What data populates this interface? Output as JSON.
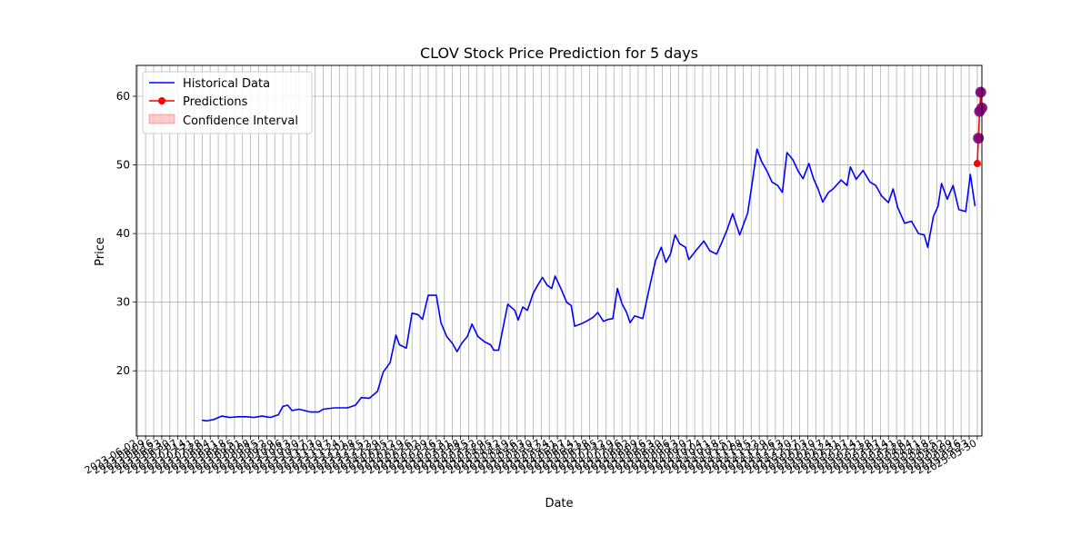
{
  "chart_data": {
    "type": "line",
    "title": "CLOV Stock Price Prediction for 5 days",
    "xlabel": "Date",
    "ylabel": "Price",
    "ylim": [
      10.5,
      64.5
    ],
    "xlim": [
      "2023-06-01",
      "2025-06-03"
    ],
    "yticks": [
      20,
      30,
      40,
      50,
      60
    ],
    "grid": true,
    "legend_position": "upper-left",
    "legend": [
      "Historical Data",
      "Predictions",
      "Confidence Interval"
    ],
    "x_tick_labels_note": "dense rotated weekly date ticks (illegible, overlapping)",
    "series": [
      {
        "name": "Historical Data",
        "color": "#0000ff",
        "points": [
          [
            "2023-07-28",
            12.8
          ],
          [
            "2023-08-01",
            12.7
          ],
          [
            "2023-08-07",
            12.9
          ],
          [
            "2023-08-14",
            13.4
          ],
          [
            "2023-08-21",
            13.2
          ],
          [
            "2023-08-28",
            13.3
          ],
          [
            "2023-09-04",
            13.3
          ],
          [
            "2023-09-11",
            13.2
          ],
          [
            "2023-09-18",
            13.4
          ],
          [
            "2023-09-25",
            13.2
          ],
          [
            "2023-10-02",
            13.6
          ],
          [
            "2023-10-06",
            14.8
          ],
          [
            "2023-10-10",
            15.0
          ],
          [
            "2023-10-14",
            14.2
          ],
          [
            "2023-10-20",
            14.4
          ],
          [
            "2023-10-30",
            14.0
          ],
          [
            "2023-11-06",
            14.0
          ],
          [
            "2023-11-10",
            14.4
          ],
          [
            "2023-11-20",
            14.6
          ],
          [
            "2023-12-01",
            14.6
          ],
          [
            "2023-12-08",
            15.0
          ],
          [
            "2023-12-13",
            16.1
          ],
          [
            "2023-12-20",
            16.0
          ],
          [
            "2023-12-27",
            17.0
          ],
          [
            "2024-01-01",
            19.8
          ],
          [
            "2024-01-07",
            21.2
          ],
          [
            "2024-01-12",
            25.2
          ],
          [
            "2024-01-15",
            23.8
          ],
          [
            "2024-01-21",
            23.3
          ],
          [
            "2024-01-26",
            28.4
          ],
          [
            "2024-01-31",
            28.2
          ],
          [
            "2024-02-04",
            27.5
          ],
          [
            "2024-02-09",
            31.0
          ],
          [
            "2024-02-16",
            31.0
          ],
          [
            "2024-02-20",
            27.0
          ],
          [
            "2024-02-25",
            25.0
          ],
          [
            "2024-03-01",
            24.0
          ],
          [
            "2024-03-05",
            22.8
          ],
          [
            "2024-03-09",
            24.0
          ],
          [
            "2024-03-14",
            25.0
          ],
          [
            "2024-03-18",
            26.8
          ],
          [
            "2024-03-23",
            25.0
          ],
          [
            "2024-03-29",
            24.2
          ],
          [
            "2024-04-03",
            23.8
          ],
          [
            "2024-04-06",
            23.0
          ],
          [
            "2024-04-10",
            23.0
          ],
          [
            "2024-04-18",
            29.7
          ],
          [
            "2024-04-24",
            28.8
          ],
          [
            "2024-04-27",
            27.4
          ],
          [
            "2024-05-01",
            29.3
          ],
          [
            "2024-05-05",
            28.8
          ],
          [
            "2024-05-10",
            31.3
          ],
          [
            "2024-05-14",
            32.5
          ],
          [
            "2024-05-18",
            33.6
          ],
          [
            "2024-05-22",
            32.5
          ],
          [
            "2024-05-26",
            32.0
          ],
          [
            "2024-05-29",
            33.8
          ],
          [
            "2024-06-03",
            32.0
          ],
          [
            "2024-06-08",
            30.0
          ],
          [
            "2024-06-12",
            29.5
          ],
          [
            "2024-06-15",
            26.5
          ],
          [
            "2024-06-20",
            26.8
          ],
          [
            "2024-06-25",
            27.2
          ],
          [
            "2024-07-01",
            27.8
          ],
          [
            "2024-07-05",
            28.5
          ],
          [
            "2024-07-10",
            27.2
          ],
          [
            "2024-07-14",
            27.5
          ],
          [
            "2024-07-18",
            27.6
          ],
          [
            "2024-07-22",
            32.0
          ],
          [
            "2024-07-26",
            29.8
          ],
          [
            "2024-07-30",
            28.5
          ],
          [
            "2024-08-02",
            27.0
          ],
          [
            "2024-08-06",
            28.0
          ],
          [
            "2024-08-13",
            27.6
          ],
          [
            "2024-08-18",
            31.5
          ],
          [
            "2024-08-24",
            36.0
          ],
          [
            "2024-08-29",
            38.0
          ],
          [
            "2024-09-02",
            35.8
          ],
          [
            "2024-09-06",
            37.0
          ],
          [
            "2024-09-10",
            39.8
          ],
          [
            "2024-09-14",
            38.5
          ],
          [
            "2024-09-19",
            38.0
          ],
          [
            "2024-09-22",
            36.2
          ],
          [
            "2024-09-28",
            37.5
          ],
          [
            "2024-10-05",
            38.9
          ],
          [
            "2024-10-10",
            37.5
          ],
          [
            "2024-10-16",
            37.0
          ],
          [
            "2024-10-20",
            38.5
          ],
          [
            "2024-10-25",
            40.5
          ],
          [
            "2024-10-30",
            42.9
          ],
          [
            "2024-11-05",
            39.8
          ],
          [
            "2024-11-12",
            43.0
          ],
          [
            "2024-11-16",
            47.5
          ],
          [
            "2024-11-20",
            52.3
          ],
          [
            "2024-11-24",
            50.5
          ],
          [
            "2024-11-29",
            49.0
          ],
          [
            "2024-12-03",
            47.5
          ],
          [
            "2024-12-08",
            47.0
          ],
          [
            "2024-12-12",
            46.0
          ],
          [
            "2024-12-16",
            51.8
          ],
          [
            "2024-12-21",
            50.8
          ],
          [
            "2024-12-26",
            49.0
          ],
          [
            "2024-12-30",
            48.0
          ],
          [
            "2025-01-04",
            50.2
          ],
          [
            "2025-01-08",
            48.0
          ],
          [
            "2025-01-12",
            46.5
          ],
          [
            "2025-01-16",
            44.6
          ],
          [
            "2025-01-21",
            46.0
          ],
          [
            "2025-01-25",
            46.5
          ],
          [
            "2025-02-01",
            47.8
          ],
          [
            "2025-02-06",
            47.0
          ],
          [
            "2025-02-09",
            49.7
          ],
          [
            "2025-02-14",
            47.9
          ],
          [
            "2025-02-20",
            49.2
          ],
          [
            "2025-02-26",
            47.5
          ],
          [
            "2025-03-03",
            47.0
          ],
          [
            "2025-03-08",
            45.5
          ],
          [
            "2025-03-14",
            44.5
          ],
          [
            "2025-03-18",
            46.5
          ],
          [
            "2025-03-22",
            43.8
          ],
          [
            "2025-03-28",
            41.5
          ],
          [
            "2025-04-03",
            41.8
          ],
          [
            "2025-04-09",
            40.0
          ],
          [
            "2025-04-14",
            39.8
          ],
          [
            "2025-04-17",
            38.0
          ],
          [
            "2025-04-22",
            42.5
          ],
          [
            "2025-04-26",
            44.0
          ],
          [
            "2025-04-29",
            47.3
          ],
          [
            "2025-05-04",
            45.0
          ],
          [
            "2025-05-09",
            47.0
          ],
          [
            "2025-05-14",
            43.5
          ],
          [
            "2025-05-20",
            43.2
          ],
          [
            "2025-05-24",
            48.6
          ],
          [
            "2025-05-28",
            44.0
          ]
        ]
      }
    ],
    "predictions": {
      "name": "Predictions",
      "color": "#ff0000",
      "points": [
        [
          "2025-05-30",
          50.2
        ],
        [
          "2025-05-31",
          53.9
        ],
        [
          "2025-06-01",
          57.8
        ],
        [
          "2025-06-02",
          60.6
        ],
        [
          "2025-06-03",
          58.3
        ]
      ]
    },
    "confidence_interval": {
      "name": "Confidence Interval",
      "color": "#ff0000",
      "lower": [
        50.0,
        53.5,
        57.2,
        60.0,
        57.8
      ],
      "upper": [
        50.4,
        54.3,
        58.4,
        61.2,
        58.8
      ]
    }
  }
}
